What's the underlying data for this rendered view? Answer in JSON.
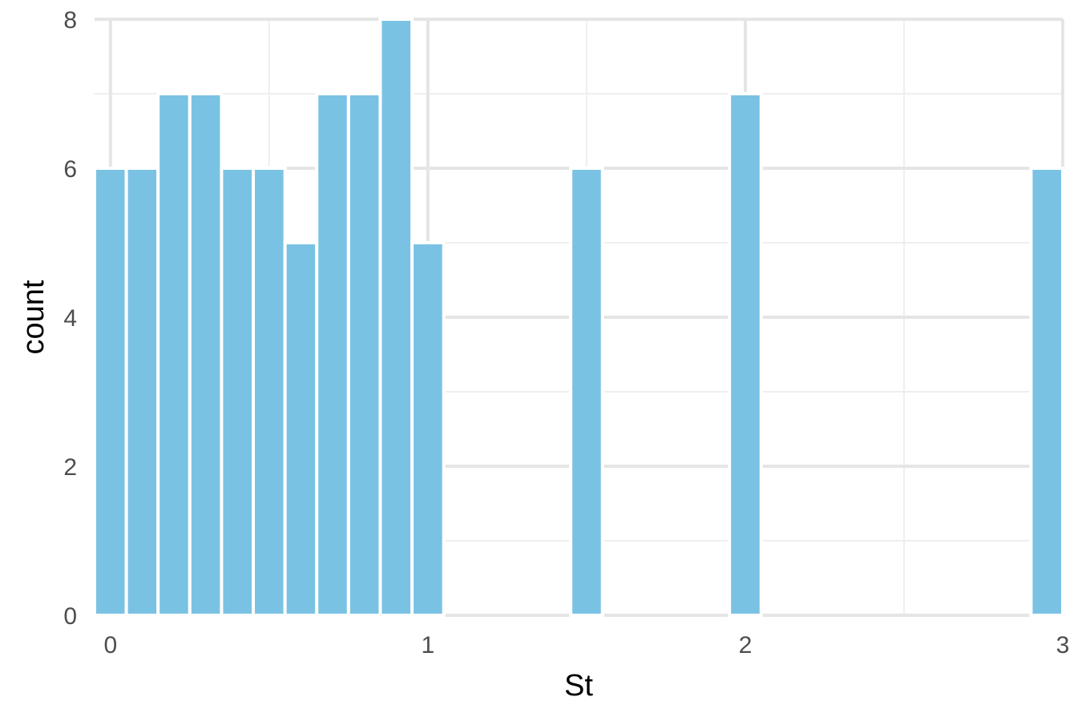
{
  "chart_data": {
    "type": "bar",
    "title": "",
    "xlabel": "St",
    "ylabel": "count",
    "xlim": [
      -0.05,
      3.0
    ],
    "ylim": [
      0,
      8
    ],
    "x_ticks": [
      0,
      1,
      2,
      3
    ],
    "x_tick_labels": [
      "0",
      "1",
      "2",
      "3"
    ],
    "y_ticks": [
      0,
      2,
      4,
      6,
      8
    ],
    "y_tick_labels": [
      "0",
      "2",
      "4",
      "6",
      "8"
    ],
    "grid": true,
    "bin_width": 0.1,
    "bars": [
      {
        "x": 0.0,
        "count": 6
      },
      {
        "x": 0.1,
        "count": 6
      },
      {
        "x": 0.2,
        "count": 7
      },
      {
        "x": 0.3,
        "count": 7
      },
      {
        "x": 0.4,
        "count": 6
      },
      {
        "x": 0.5,
        "count": 6
      },
      {
        "x": 0.6,
        "count": 5
      },
      {
        "x": 0.7,
        "count": 7
      },
      {
        "x": 0.8,
        "count": 7
      },
      {
        "x": 0.9,
        "count": 8
      },
      {
        "x": 1.0,
        "count": 5
      },
      {
        "x": 1.5,
        "count": 6
      },
      {
        "x": 2.0,
        "count": 7
      },
      {
        "x": 2.95,
        "count": 6
      }
    ],
    "colors": {
      "bar_fill": "#7ac2e4",
      "grid_major": "#e5e5e5",
      "grid_minor": "#efefef"
    }
  }
}
